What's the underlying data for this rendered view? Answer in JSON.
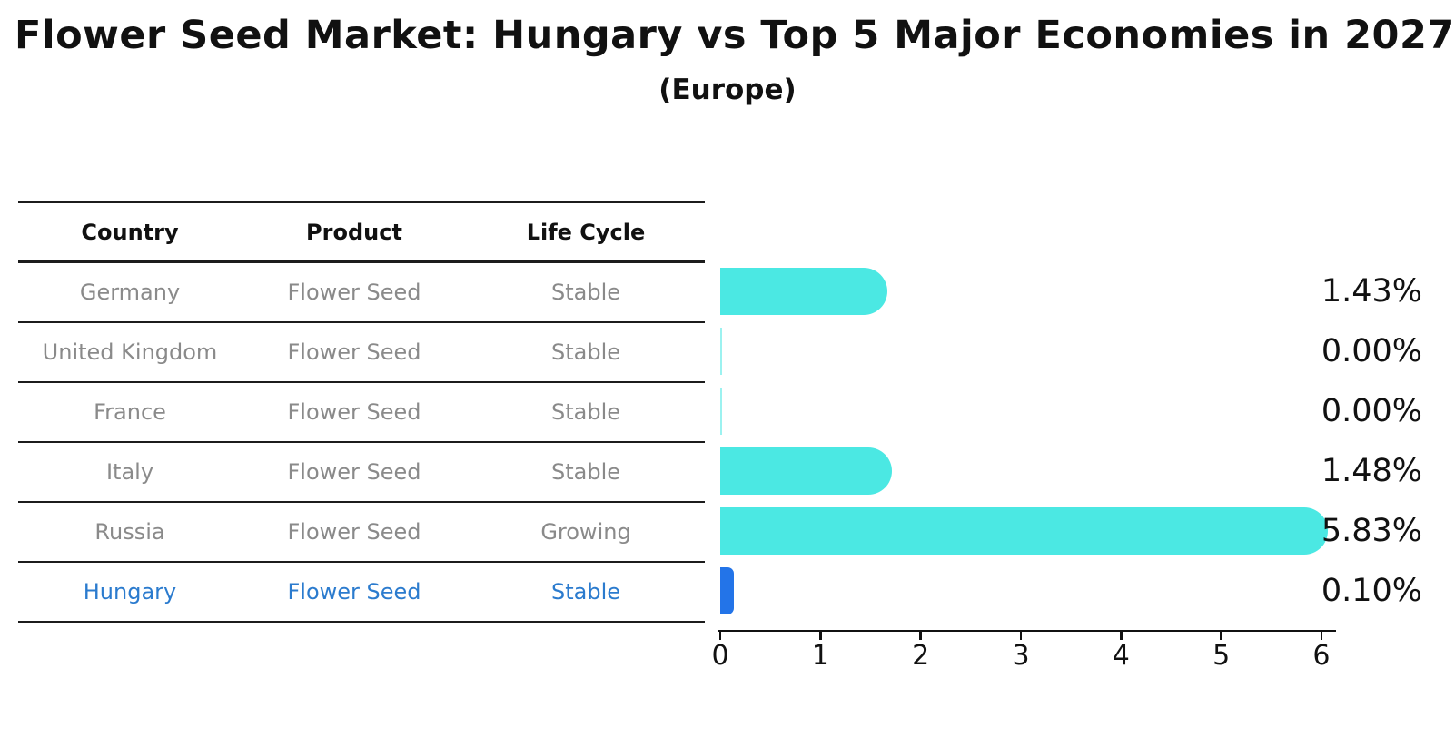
{
  "title": "Flower Seed Market: Hungary vs Top 5 Major Economies in 2027",
  "subtitle": "(Europe)",
  "table": {
    "headers": [
      "Country",
      "Product",
      "Life Cycle"
    ],
    "rows": [
      {
        "country": "Germany",
        "product": "Flower Seed",
        "life_cycle": "Stable",
        "highlight": false
      },
      {
        "country": "United Kingdom",
        "product": "Flower Seed",
        "life_cycle": "Stable",
        "highlight": false
      },
      {
        "country": "France",
        "product": "Flower Seed",
        "life_cycle": "Stable",
        "highlight": false
      },
      {
        "country": "Italy",
        "product": "Flower Seed",
        "life_cycle": "Stable",
        "highlight": false
      },
      {
        "country": "Russia",
        "product": "Flower Seed",
        "life_cycle": "Growing",
        "highlight": false
      },
      {
        "country": "Hungary",
        "product": "Flower Seed",
        "life_cycle": "Stable",
        "highlight": true
      }
    ]
  },
  "chart_data": {
    "type": "bar",
    "orientation": "horizontal",
    "title": "Flower Seed Market: Hungary vs Top 5 Major Economies in 2027",
    "subtitle": "(Europe)",
    "categories": [
      "Germany",
      "United Kingdom",
      "France",
      "Italy",
      "Russia",
      "Hungary"
    ],
    "values": [
      1.43,
      0.0,
      0.0,
      1.48,
      5.83,
      0.1
    ],
    "value_labels": [
      "1.43%",
      "0.00%",
      "0.00%",
      "1.48%",
      "5.83%",
      "0.10%"
    ],
    "xlim": [
      0,
      6.15
    ],
    "x_ticks": [
      0,
      1,
      2,
      3,
      4,
      5,
      6
    ],
    "grid": false,
    "legend": false,
    "bar_color": "#4BE8E3",
    "highlight_color": "#2374E8",
    "highlight_index": 5
  },
  "colors": {
    "background": "#FFFFFF",
    "title_text": "#111111",
    "header_text": "#111111",
    "row_text": "#8A8A8A",
    "highlight_text": "#2B7BCE",
    "table_line": "#1C1C1C",
    "axis": "#111111",
    "value_label_text": "#111111"
  }
}
